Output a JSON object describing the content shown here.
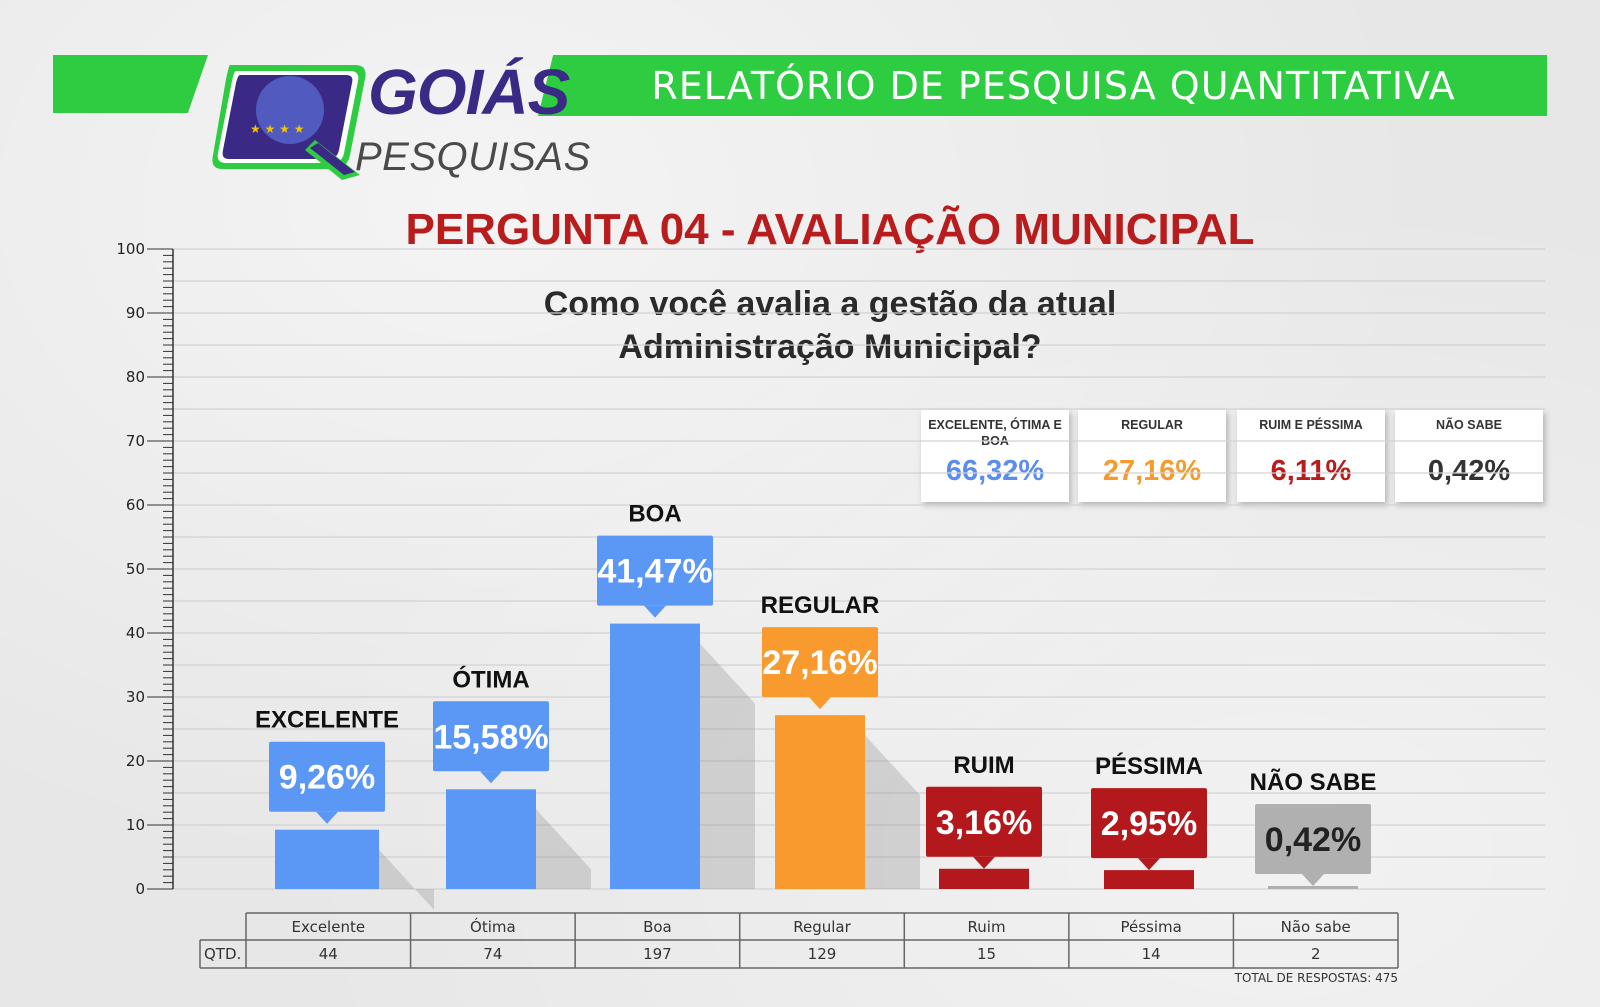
{
  "header": {
    "report_title": "RELATÓRIO DE PESQUISA QUANTITATIVA",
    "brand_line1": "GOIÁS",
    "brand_line2": "PESQUISAS",
    "brand_color": "#3a2a85",
    "accent_color": "#2ecc40"
  },
  "question": {
    "title": "PERGUNTA 04 - AVALIAÇÃO MUNICIPAL",
    "text_line1": "Como você avalia a gestão da atual",
    "text_line2": "Administração Municipal?"
  },
  "summary": [
    {
      "label": "EXCELENTE, ÓTIMA E BOA",
      "value": "66,32%",
      "color": "#5b8def"
    },
    {
      "label": "REGULAR",
      "value": "27,16%",
      "color": "#f59a2c"
    },
    {
      "label": "RUIM E PÉSSIMA",
      "value": "6,11%",
      "color": "#b81c1c"
    },
    {
      "label": "NÃO SABE",
      "value": "0,42%",
      "color": "#333333"
    }
  ],
  "chart_data": {
    "type": "bar",
    "ylim": [
      0,
      100
    ],
    "yticks": [
      0,
      10,
      20,
      30,
      40,
      50,
      60,
      70,
      80,
      90,
      100
    ],
    "grid": true,
    "categories": [
      "EXCELENTE",
      "ÓTIMA",
      "BOA",
      "REGULAR",
      "RUIM",
      "PÉSSIMA",
      "NÃO SABE"
    ],
    "values": [
      9.26,
      15.58,
      41.47,
      27.16,
      3.16,
      2.95,
      0.42
    ],
    "value_labels": [
      "9,26%",
      "15,58%",
      "41,47%",
      "27,16%",
      "3,16%",
      "2,95%",
      "0,42%"
    ],
    "colors": [
      "#5b97f5",
      "#5b97f5",
      "#5b97f5",
      "#f89a2e",
      "#b3191c",
      "#b3191c",
      "#b0b0b0"
    ],
    "label_colors": [
      "#5b97f5",
      "#5b97f5",
      "#5b97f5",
      "#f89a2e",
      "#b3191c",
      "#b3191c",
      "#b0b0b0"
    ]
  },
  "table": {
    "row_header": "QTD.",
    "columns": [
      "Excelente",
      "Ótima",
      "Boa",
      "Regular",
      "Ruim",
      "Péssima",
      "Não sabe"
    ],
    "counts": [
      "44",
      "74",
      "197",
      "129",
      "15",
      "14",
      "2"
    ],
    "total_text": "TOTAL DE RESPOSTAS: 475"
  }
}
